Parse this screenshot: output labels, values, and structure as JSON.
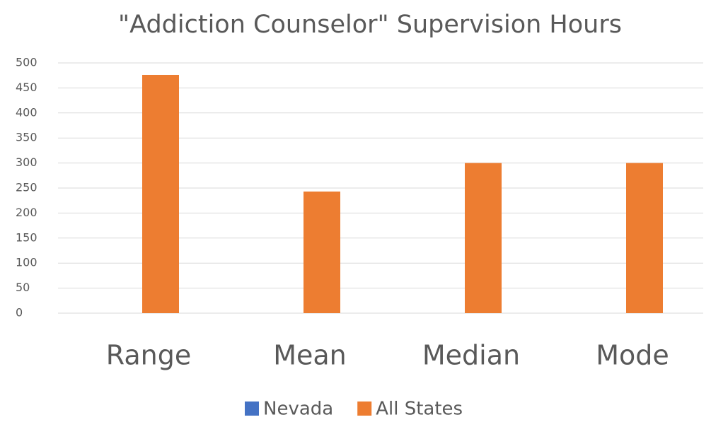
{
  "chart_data": {
    "type": "bar",
    "title": "\"Addiction Counselor\" Supervision Hours",
    "categories": [
      "Range",
      "Mean",
      "Median",
      "Mode"
    ],
    "series": [
      {
        "name": "Nevada",
        "color": "#4472c4",
        "values": [
          0,
          0,
          0,
          0
        ]
      },
      {
        "name": "All States",
        "color": "#ed7d31",
        "values": [
          476,
          243,
          300,
          300
        ]
      }
    ],
    "ylim": [
      0,
      500
    ],
    "yticks": [
      0,
      50,
      100,
      150,
      200,
      250,
      300,
      350,
      400,
      450,
      500
    ],
    "grid": true,
    "legend": "bottom"
  }
}
